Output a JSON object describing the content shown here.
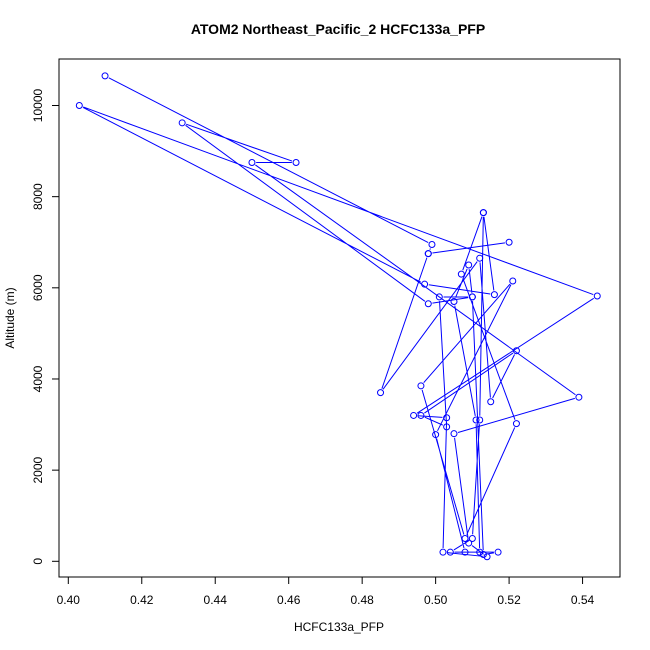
{
  "chart_data": {
    "type": "line",
    "title": "ATOM2 Northeast_Pacific_2 HCFC133a_PFP",
    "xlabel": "HCFC133a_PFP",
    "ylabel": "Altitude (m)",
    "xlim": [
      0.4,
      0.545
    ],
    "ylim": [
      0,
      11000
    ],
    "x_ticks": [
      0.4,
      0.42,
      0.44,
      0.46,
      0.48,
      0.5,
      0.52,
      0.54
    ],
    "x_tick_labels": [
      "0.40",
      "0.42",
      "0.44",
      "0.46",
      "0.48",
      "0.50",
      "0.52",
      "0.54"
    ],
    "y_ticks": [
      0,
      2000,
      4000,
      6000,
      8000,
      10000
    ],
    "y_tick_labels": [
      "0",
      "2000",
      "4000",
      "6000",
      "8000",
      "10000"
    ],
    "grid": false,
    "series_color": "#0000ff",
    "series": [
      {
        "points": [
          [
            0.41,
            10650
          ],
          [
            0.499,
            6950
          ],
          [
            0.498,
            6750
          ],
          [
            0.52,
            7000
          ],
          [
            0.498,
            6750
          ],
          [
            0.485,
            3700
          ],
          [
            0.512,
            6650
          ],
          [
            0.515,
            3500
          ],
          [
            0.522,
            4620
          ],
          [
            0.496,
            3200
          ],
          [
            0.503,
            2950
          ],
          [
            0.501,
            5800
          ],
          [
            0.51,
            5800
          ],
          [
            0.509,
            6500
          ],
          [
            0.505,
            5700
          ],
          [
            0.511,
            3100
          ],
          [
            0.512,
            200
          ],
          [
            0.504,
            200
          ],
          [
            0.51,
            500
          ],
          [
            0.512,
            3100
          ],
          [
            0.513,
            7650
          ],
          [
            0.507,
            6300
          ],
          [
            0.522,
            3020
          ],
          [
            0.508,
            500
          ],
          [
            0.496,
            3850
          ],
          [
            0.521,
            6150
          ],
          [
            0.5,
            2780
          ],
          [
            0.508,
            200
          ],
          [
            0.517,
            200
          ],
          [
            0.513,
            150
          ],
          [
            0.51,
            5800
          ],
          [
            0.498,
            5650
          ],
          [
            0.431,
            9620
          ],
          [
            0.462,
            8750
          ],
          [
            0.45,
            8750
          ],
          [
            0.539,
            3600
          ],
          [
            0.505,
            2800
          ],
          [
            0.509,
            400
          ],
          [
            0.514,
            100
          ],
          [
            0.502,
            200
          ],
          [
            0.503,
            3150
          ],
          [
            0.494,
            3200
          ],
          [
            0.544,
            5820
          ],
          [
            0.403,
            10000
          ],
          [
            0.497,
            6080
          ],
          [
            0.516,
            5850
          ],
          [
            0.513,
            7650
          ]
        ]
      }
    ]
  }
}
